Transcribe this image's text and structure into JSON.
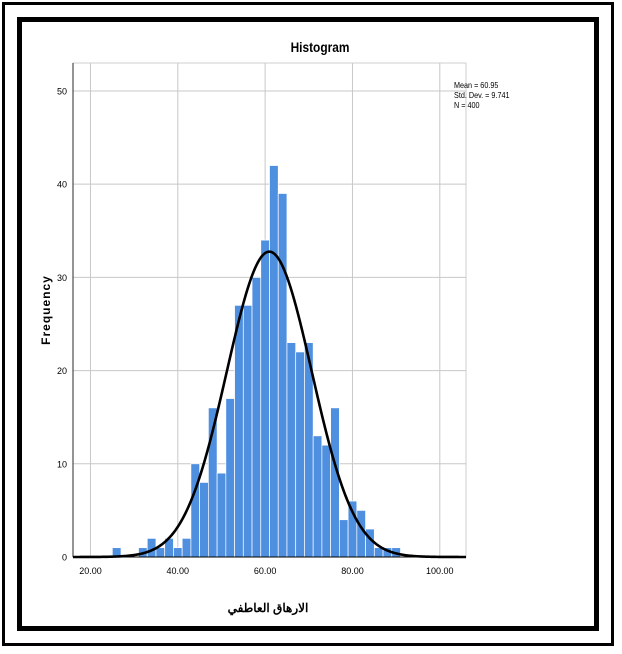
{
  "chart_data": {
    "type": "bar",
    "title": "Histogram",
    "xlabel": "الارهاق العاطفي",
    "ylabel": "Frequency",
    "xlim": [
      16,
      106
    ],
    "ylim": [
      0,
      53
    ],
    "x_ticks": [
      "20.00",
      "40.00",
      "60.00",
      "80.00",
      "100.00"
    ],
    "x_tick_values": [
      20,
      40,
      60,
      80,
      100
    ],
    "y_ticks": [
      "0",
      "10",
      "20",
      "30",
      "40",
      "50"
    ],
    "y_tick_values": [
      0,
      10,
      20,
      30,
      40,
      50
    ],
    "grid": true,
    "bar_color": "#4f8fe0",
    "bin_width": 2,
    "bins": [
      {
        "x0": 25,
        "value": 1
      },
      {
        "x0": 31,
        "value": 1
      },
      {
        "x0": 33,
        "value": 2
      },
      {
        "x0": 35,
        "value": 1
      },
      {
        "x0": 37,
        "value": 2
      },
      {
        "x0": 39,
        "value": 1
      },
      {
        "x0": 41,
        "value": 2
      },
      {
        "x0": 43,
        "value": 10
      },
      {
        "x0": 45,
        "value": 8
      },
      {
        "x0": 47,
        "value": 16
      },
      {
        "x0": 49,
        "value": 9
      },
      {
        "x0": 51,
        "value": 17
      },
      {
        "x0": 53,
        "value": 27
      },
      {
        "x0": 55,
        "value": 27
      },
      {
        "x0": 57,
        "value": 30
      },
      {
        "x0": 59,
        "value": 34
      },
      {
        "x0": 61,
        "value": 42
      },
      {
        "x0": 63,
        "value": 39
      },
      {
        "x0": 65,
        "value": 23
      },
      {
        "x0": 67,
        "value": 22
      },
      {
        "x0": 69,
        "value": 23
      },
      {
        "x0": 71,
        "value": 13
      },
      {
        "x0": 73,
        "value": 12
      },
      {
        "x0": 75,
        "value": 16
      },
      {
        "x0": 77,
        "value": 4
      },
      {
        "x0": 79,
        "value": 6
      },
      {
        "x0": 81,
        "value": 5
      },
      {
        "x0": 83,
        "value": 3
      },
      {
        "x0": 85,
        "value": 1
      },
      {
        "x0": 87,
        "value": 1
      },
      {
        "x0": 89,
        "value": 1
      }
    ],
    "normal_curve": {
      "mean": 60.95,
      "sd": 9.741,
      "n": 400,
      "color": "#000000"
    },
    "legend_position": "top-right"
  },
  "stats": {
    "mean_label": "Mean = 60.95",
    "sd_label": "Std. Dev. = 9.741",
    "n_label": "N = 400"
  }
}
